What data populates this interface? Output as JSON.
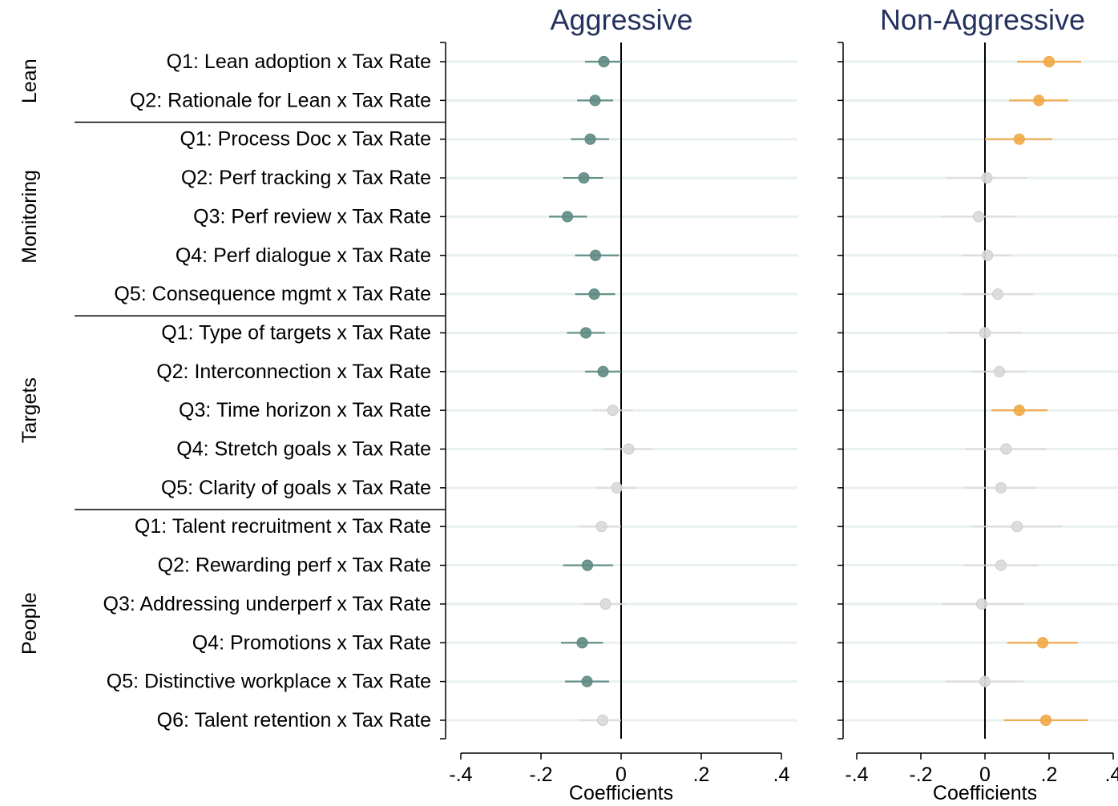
{
  "chart_data": {
    "type": "scatter",
    "x_label": "Coefficients",
    "x_ticks": [
      -0.4,
      -0.2,
      0,
      0.2,
      0.4
    ],
    "x_tick_labels": [
      "-.4",
      "-.2",
      "0",
      ".2",
      ".4"
    ],
    "xlim": [
      -0.43,
      0.43
    ],
    "grid": "horizontal light rows at each item",
    "colors": {
      "aggressive_significant": "#5f8b84",
      "nonaggressive_significant": "#f0a846",
      "insignificant": "#d9d9d9",
      "title": "#26325e",
      "zero_line": "#000000"
    },
    "groups": [
      {
        "label": "Lean",
        "start": 0,
        "end": 1
      },
      {
        "label": "Monitoring",
        "start": 2,
        "end": 6
      },
      {
        "label": "Targets",
        "start": 7,
        "end": 11
      },
      {
        "label": "People",
        "start": 12,
        "end": 17
      }
    ],
    "items": [
      "Q1: Lean adoption x Tax Rate",
      "Q2: Rationale for Lean x Tax Rate",
      "Q1: Process Doc x Tax Rate",
      "Q2: Perf tracking x Tax Rate",
      "Q3: Perf review x Tax Rate",
      "Q4: Perf dialogue x Tax Rate",
      "Q5: Consequence mgmt x Tax Rate",
      "Q1: Type of targets x Tax Rate",
      "Q2: Interconnection x Tax Rate",
      "Q3: Time horizon x Tax Rate",
      "Q4: Stretch goals x Tax Rate",
      "Q5: Clarity of goals x Tax Rate",
      "Q1: Talent recruitment x Tax Rate",
      "Q2: Rewarding perf x Tax Rate",
      "Q3: Addressing underperf x Tax Rate",
      "Q4: Promotions x Tax Rate",
      "Q5: Distinctive workplace x Tax Rate",
      "Q6: Talent retention x Tax Rate"
    ],
    "panels": [
      {
        "title": "Aggressive",
        "coef": [
          -0.043,
          -0.065,
          -0.077,
          -0.093,
          -0.134,
          -0.064,
          -0.067,
          -0.088,
          -0.045,
          -0.021,
          0.019,
          -0.011,
          -0.049,
          -0.084,
          -0.039,
          -0.097,
          -0.085,
          -0.046
        ],
        "ci_lo": [
          -0.09,
          -0.11,
          -0.125,
          -0.145,
          -0.18,
          -0.115,
          -0.115,
          -0.135,
          -0.09,
          -0.07,
          -0.04,
          -0.06,
          -0.105,
          -0.145,
          -0.095,
          -0.15,
          -0.14,
          -0.105
        ],
        "ci_hi": [
          0.0,
          -0.02,
          -0.03,
          -0.045,
          -0.085,
          -0.005,
          -0.015,
          -0.04,
          0.0,
          0.03,
          0.08,
          0.04,
          0.0,
          -0.02,
          0.01,
          -0.045,
          -0.03,
          0.0
        ],
        "significant": [
          true,
          true,
          true,
          true,
          true,
          true,
          true,
          true,
          true,
          false,
          false,
          false,
          false,
          true,
          false,
          true,
          true,
          false
        ]
      },
      {
        "title": "Non-Aggressive",
        "coef": [
          0.2,
          0.168,
          0.107,
          0.006,
          -0.02,
          0.008,
          0.04,
          0.0,
          0.045,
          0.107,
          0.066,
          0.05,
          0.1,
          0.05,
          -0.01,
          0.18,
          0.0,
          0.19
        ],
        "ci_lo": [
          0.1,
          0.075,
          0.0,
          -0.12,
          -0.135,
          -0.07,
          -0.07,
          -0.115,
          -0.04,
          0.02,
          -0.06,
          -0.06,
          -0.04,
          -0.065,
          -0.135,
          0.07,
          -0.12,
          0.06
        ],
        "ci_hi": [
          0.3,
          0.26,
          0.21,
          0.13,
          0.095,
          0.085,
          0.15,
          0.115,
          0.13,
          0.195,
          0.19,
          0.16,
          0.24,
          0.165,
          0.12,
          0.29,
          0.12,
          0.32
        ],
        "significant": [
          true,
          true,
          true,
          false,
          false,
          false,
          false,
          false,
          false,
          true,
          false,
          false,
          false,
          false,
          false,
          true,
          false,
          true
        ]
      }
    ]
  }
}
